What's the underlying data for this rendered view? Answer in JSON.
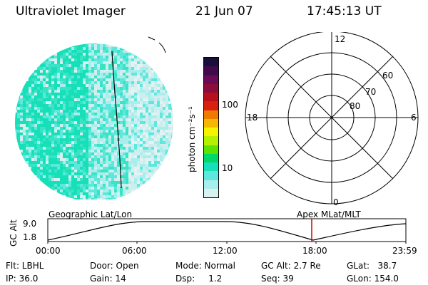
{
  "header": {
    "instrument": "Ultraviolet Imager",
    "date": "21 Jun 07",
    "time": "17:45:13 UT"
  },
  "colorbar": {
    "unit_label": "photon cm⁻²s⁻¹",
    "ticks": [
      "100",
      "10"
    ],
    "colors": [
      "#1a0f3a",
      "#400a4c",
      "#6a0c55",
      "#8c0d3c",
      "#b80f1c",
      "#d8200f",
      "#f07a00",
      "#f5b800",
      "#f4f400",
      "#b4f000",
      "#5ce300",
      "#00d86a",
      "#16e0b8",
      "#5ee8dd",
      "#a8eeec",
      "#d8f2f2"
    ]
  },
  "polar_plot": {
    "mlt_labels": [
      "12",
      "18",
      "6",
      "0"
    ],
    "lat_labels": [
      "60",
      "70",
      "80"
    ]
  },
  "timeline": {
    "left_title": "Geographic Lat/Lon",
    "right_title": "Apex  MLat/MLT",
    "ylabel": "GC Alt",
    "y_ticks": [
      "9.0",
      "1.8"
    ],
    "x_ticks": [
      "00:00",
      "06:00",
      "12:00",
      "18:00",
      "23:59"
    ],
    "current_time_color": "#cc0000"
  },
  "info": {
    "flt": "Flt: LBHL",
    "ip": "IP: 36.0",
    "door": "Door: Open",
    "gain": "Gain: 14",
    "mode": "Mode: Normal",
    "dsp": "Dsp:     1.2",
    "gc_alt": "GC Alt: 2.7 Re",
    "seq": "Seq: 39",
    "glat": "GLat:   38.7",
    "glon": "GLon: 154.0"
  }
}
